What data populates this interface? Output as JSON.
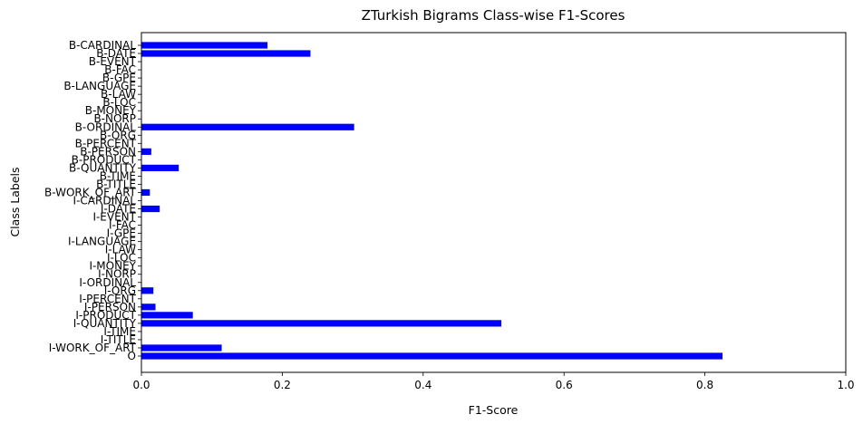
{
  "chart_data": {
    "type": "bar",
    "orientation": "horizontal",
    "title": "ZTurkish Bigrams Class-wise F1-Scores",
    "xlabel": "F1-Score",
    "ylabel": "Class Labels",
    "xlim": [
      0,
      1.0
    ],
    "xticks": [
      "0.0",
      "0.2",
      "0.4",
      "0.6",
      "0.8",
      "1.0"
    ],
    "grid": false,
    "bar_color": "#0000ff",
    "categories": [
      "B-CARDINAL",
      "B-DATE",
      "B-EVENT",
      "B-FAC",
      "B-GPE",
      "B-LANGUAGE",
      "B-LAW",
      "B-LOC",
      "B-MONEY",
      "B-NORP",
      "B-ORDINAL",
      "B-ORG",
      "B-PERCENT",
      "B-PERSON",
      "B-PRODUCT",
      "B-QUANTITY",
      "B-TIME",
      "B-TITLE",
      "B-WORK_OF_ART",
      "I-CARDINAL",
      "I-DATE",
      "I-EVENT",
      "I-FAC",
      "I-GPE",
      "I-LANGUAGE",
      "I-LAW",
      "I-LOC",
      "I-MONEY",
      "I-NORP",
      "I-ORDINAL",
      "I-ORG",
      "I-PERCENT",
      "I-PERSON",
      "I-PRODUCT",
      "I-QUANTITY",
      "I-TIME",
      "I-TITLE",
      "I-WORK_OF_ART",
      "O"
    ],
    "values": [
      0.179,
      0.24,
      0,
      0,
      0,
      0,
      0,
      0,
      0,
      0,
      0.302,
      0,
      0,
      0.014,
      0,
      0.053,
      0,
      0,
      0.012,
      0,
      0.026,
      0,
      0,
      0,
      0,
      0,
      0,
      0,
      0,
      0,
      0.017,
      0,
      0.02,
      0.073,
      0.511,
      0,
      0,
      0.114,
      0.825
    ]
  }
}
